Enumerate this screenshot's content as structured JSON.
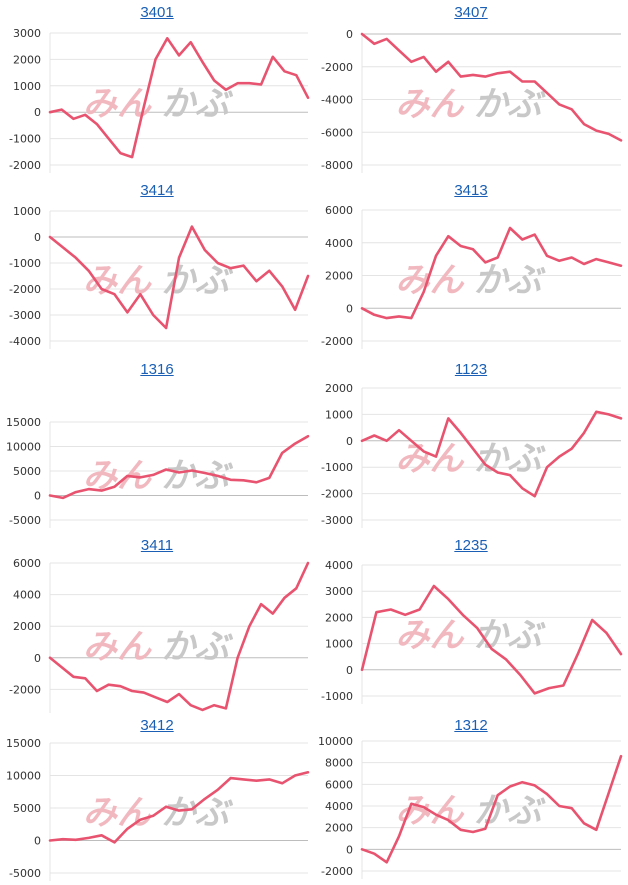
{
  "colors": {
    "line": "#e8546f",
    "grid": "#e4e4e4",
    "zero": "#bdbdbd",
    "title": "#1a5fb4",
    "watermark_left": "#f2b8bf",
    "watermark_right": "#c8c8c8"
  },
  "watermark": {
    "left": "みん",
    "right": "かぶ"
  },
  "chart_data": [
    {
      "type": "line",
      "title": "3401",
      "ylim": [
        -2000,
        3000
      ],
      "yticks": [
        3000,
        2000,
        1000,
        0,
        -1000,
        -2000
      ],
      "series": [
        {
          "values": [
            0,
            100,
            -250,
            -100,
            -450,
            -1000,
            -1550,
            -1700,
            200,
            2000,
            2800,
            2150,
            2650,
            1900,
            1200,
            850,
            1100,
            1100,
            1050,
            2100,
            1550,
            1400,
            550
          ]
        }
      ]
    },
    {
      "type": "line",
      "title": "3407",
      "ylim": [
        -8000,
        0
      ],
      "yticks": [
        0,
        -2000,
        -4000,
        -6000,
        -8000
      ],
      "series": [
        {
          "values": [
            0,
            -600,
            -300,
            -1000,
            -1700,
            -1400,
            -2300,
            -1700,
            -2600,
            -2500,
            -2600,
            -2400,
            -2300,
            -2900,
            -2900,
            -3600,
            -4300,
            -4600,
            -5500,
            -5900,
            -6100,
            -6500
          ]
        }
      ]
    },
    {
      "type": "line",
      "title": "3414",
      "ylim": [
        -4000,
        1000
      ],
      "yticks": [
        1000,
        0,
        -1000,
        -2000,
        -3000,
        -4000
      ],
      "series": [
        {
          "values": [
            0,
            -400,
            -800,
            -1300,
            -2000,
            -2200,
            -2900,
            -2200,
            -3000,
            -3500,
            -800,
            400,
            -500,
            -1000,
            -1200,
            -1100,
            -1700,
            -1300,
            -1900,
            -2800,
            -1500
          ]
        }
      ]
    },
    {
      "type": "line",
      "title": "3413",
      "ylim": [
        -2000,
        6000
      ],
      "yticks": [
        6000,
        4000,
        2000,
        0,
        -2000
      ],
      "series": [
        {
          "values": [
            0,
            -400,
            -600,
            -500,
            -600,
            1000,
            3200,
            4400,
            3800,
            3600,
            2800,
            3100,
            4900,
            4200,
            4500,
            3200,
            2900,
            3100,
            2700,
            3000,
            2800,
            2600
          ]
        }
      ]
    },
    {
      "type": "line",
      "title": "1316",
      "ylim": [
        -5000,
        15000
      ],
      "yticks": [
        15000,
        10000,
        5000,
        0,
        -5000
      ],
      "series": [
        {
          "values": [
            0,
            -500,
            700,
            1300,
            1000,
            1800,
            4000,
            3700,
            4200,
            5300,
            4700,
            5100,
            4600,
            4000,
            3200,
            3100,
            2700,
            3600,
            8700,
            10600,
            12100
          ]
        }
      ]
    },
    {
      "type": "line",
      "title": "1123",
      "ylim": [
        -3000,
        2000
      ],
      "yticks": [
        2000,
        1000,
        0,
        -1000,
        -2000,
        -3000
      ],
      "series": [
        {
          "values": [
            0,
            200,
            0,
            400,
            0,
            -400,
            -600,
            850,
            300,
            -300,
            -900,
            -1200,
            -1300,
            -1800,
            -2100,
            -1000,
            -600,
            -300,
            300,
            1100,
            1000,
            850
          ]
        }
      ]
    },
    {
      "type": "line",
      "title": "3411",
      "ylim": [
        -4000,
        6000
      ],
      "yticks": [
        6000,
        4000,
        2000,
        0,
        -2000,
        -4000
      ],
      "series": [
        {
          "values": [
            0,
            -600,
            -1200,
            -1300,
            -2100,
            -1700,
            -1800,
            -2100,
            -2200,
            -2500,
            -2800,
            -2300,
            -3000,
            -3300,
            -3000,
            -3200,
            0,
            2000,
            3400,
            2800,
            3800,
            4400,
            6000
          ]
        }
      ]
    },
    {
      "type": "line",
      "title": "1235",
      "ylim": [
        -1000,
        4000
      ],
      "yticks": [
        4000,
        3000,
        2000,
        1000,
        0,
        -1000
      ],
      "series": [
        {
          "values": [
            0,
            2200,
            2300,
            2100,
            2300,
            3200,
            2700,
            2100,
            1600,
            800,
            400,
            -200,
            -900,
            -700,
            -600,
            600,
            1900,
            1400,
            600
          ]
        }
      ]
    },
    {
      "type": "line",
      "title": "3412",
      "ylim": [
        -5000,
        15000
      ],
      "yticks": [
        15000,
        10000,
        5000,
        0,
        -5000
      ],
      "series": [
        {
          "values": [
            0,
            200,
            100,
            400,
            800,
            -300,
            1800,
            3200,
            3800,
            5200,
            4600,
            4800,
            6400,
            7800,
            9600,
            9400,
            9200,
            9400,
            8800,
            10000,
            10500
          ]
        }
      ]
    },
    {
      "type": "line",
      "title": "1312",
      "ylim": [
        -2000,
        10000
      ],
      "yticks": [
        10000,
        8000,
        6000,
        4000,
        2000,
        0,
        -2000
      ],
      "series": [
        {
          "values": [
            0,
            -400,
            -1200,
            1200,
            4200,
            3900,
            3200,
            2700,
            1800,
            1600,
            1900,
            5000,
            5800,
            6200,
            5900,
            5100,
            4000,
            3800,
            2400,
            1800,
            5200,
            8600
          ]
        }
      ]
    }
  ]
}
